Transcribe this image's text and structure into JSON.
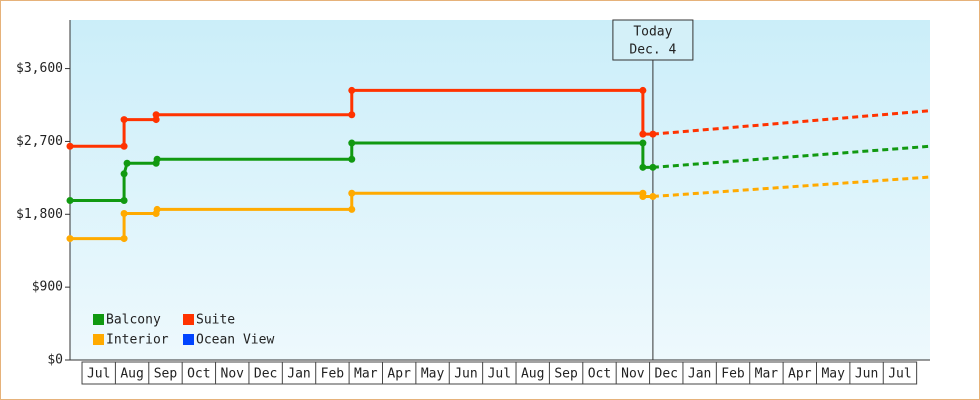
{
  "chart_data": {
    "type": "line",
    "categories": [
      "Jul",
      "Aug",
      "Sep",
      "Oct",
      "Nov",
      "Dec",
      "Jan",
      "Feb",
      "Mar",
      "Apr",
      "May",
      "Jun",
      "Jul",
      "Aug",
      "Sep",
      "Oct",
      "Nov",
      "Dec",
      "Jan",
      "Feb",
      "Mar",
      "Apr",
      "May",
      "Jun",
      "Jul"
    ],
    "xlim": [
      -0.36,
      25.4
    ],
    "ylim": [
      0,
      4200
    ],
    "yticks": [
      {
        "value": 0,
        "label": "$0"
      },
      {
        "value": 900,
        "label": "$900"
      },
      {
        "value": 1800,
        "label": "$1,800"
      },
      {
        "value": 2700,
        "label": "$2,700"
      },
      {
        "value": 3600,
        "label": "$3,600"
      }
    ],
    "today": {
      "x": 17.1,
      "label": "Today",
      "date": "Dec. 4"
    },
    "series": [
      {
        "name": "Balcony",
        "color": "#119911",
        "x": [
          -0.36,
          1.26,
          1.26,
          1.35,
          2.22,
          2.25,
          8.08,
          8.08,
          16.8,
          16.8,
          17.1
        ],
        "values": [
          1970,
          1970,
          2300,
          2430,
          2430,
          2480,
          2480,
          2680,
          2680,
          2380,
          2380
        ],
        "forecast_x": [
          17.1,
          25.4
        ],
        "forecast_values": [
          2380,
          2640
        ]
      },
      {
        "name": "Suite",
        "color": "#ff3300",
        "x": [
          -0.36,
          1.26,
          1.26,
          2.22,
          2.22,
          8.08,
          8.08,
          16.8,
          16.8,
          17.1
        ],
        "values": [
          2640,
          2640,
          2970,
          2970,
          3030,
          3030,
          3330,
          3330,
          2790,
          2790
        ],
        "forecast_x": [
          17.1,
          25.4
        ],
        "forecast_values": [
          2790,
          3080
        ]
      },
      {
        "name": "Interior",
        "color": "#ffaa00",
        "x": [
          -0.36,
          1.26,
          1.26,
          2.22,
          2.25,
          8.08,
          8.08,
          16.8,
          16.8,
          17.1
        ],
        "values": [
          1500,
          1500,
          1810,
          1810,
          1860,
          1860,
          2060,
          2060,
          2020,
          2020
        ],
        "forecast_x": [
          17.1,
          25.4
        ],
        "forecast_values": [
          2020,
          2260
        ]
      },
      {
        "name": "Ocean View",
        "color": "#0044ff",
        "x": [],
        "values": []
      }
    ]
  }
}
